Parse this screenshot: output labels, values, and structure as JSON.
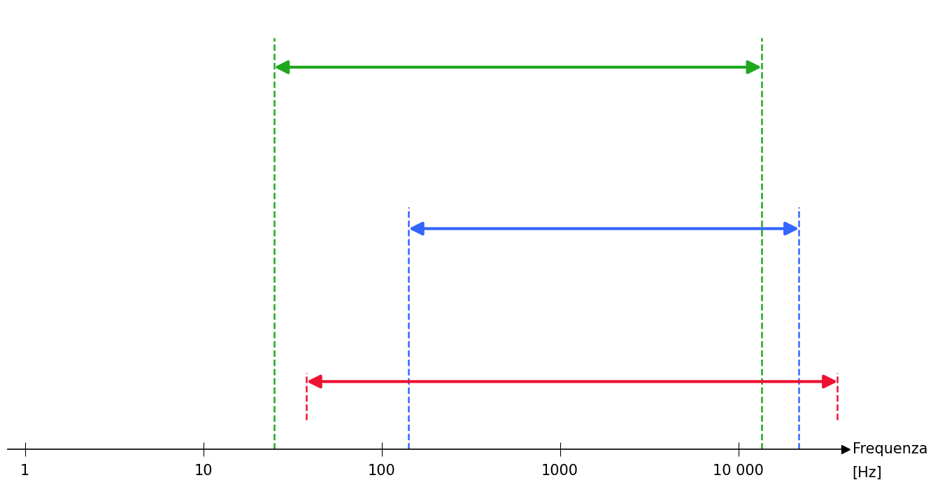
{
  "chart_data": {
    "type": "range",
    "xlabel": "Frequenza",
    "x_unit": "[Hz]",
    "log": "x",
    "xlim": [
      0.8,
      40000
    ],
    "xticks": [
      1,
      10,
      100,
      1000,
      {
        "value": 10000,
        "label": "10 000"
      }
    ],
    "tick_labels": "x",
    "grid": false,
    "series": [
      {
        "color": "#1fa81f",
        "line_style": "dashed",
        "values": [
          25,
          13500
        ]
      },
      {
        "color": "#3366ff",
        "line_style": "dashed",
        "values": [
          142,
          21900
        ]
      },
      {
        "color": "#ee1133",
        "line_style": "dashed",
        "values": [
          38,
          36000
        ]
      }
    ]
  }
}
